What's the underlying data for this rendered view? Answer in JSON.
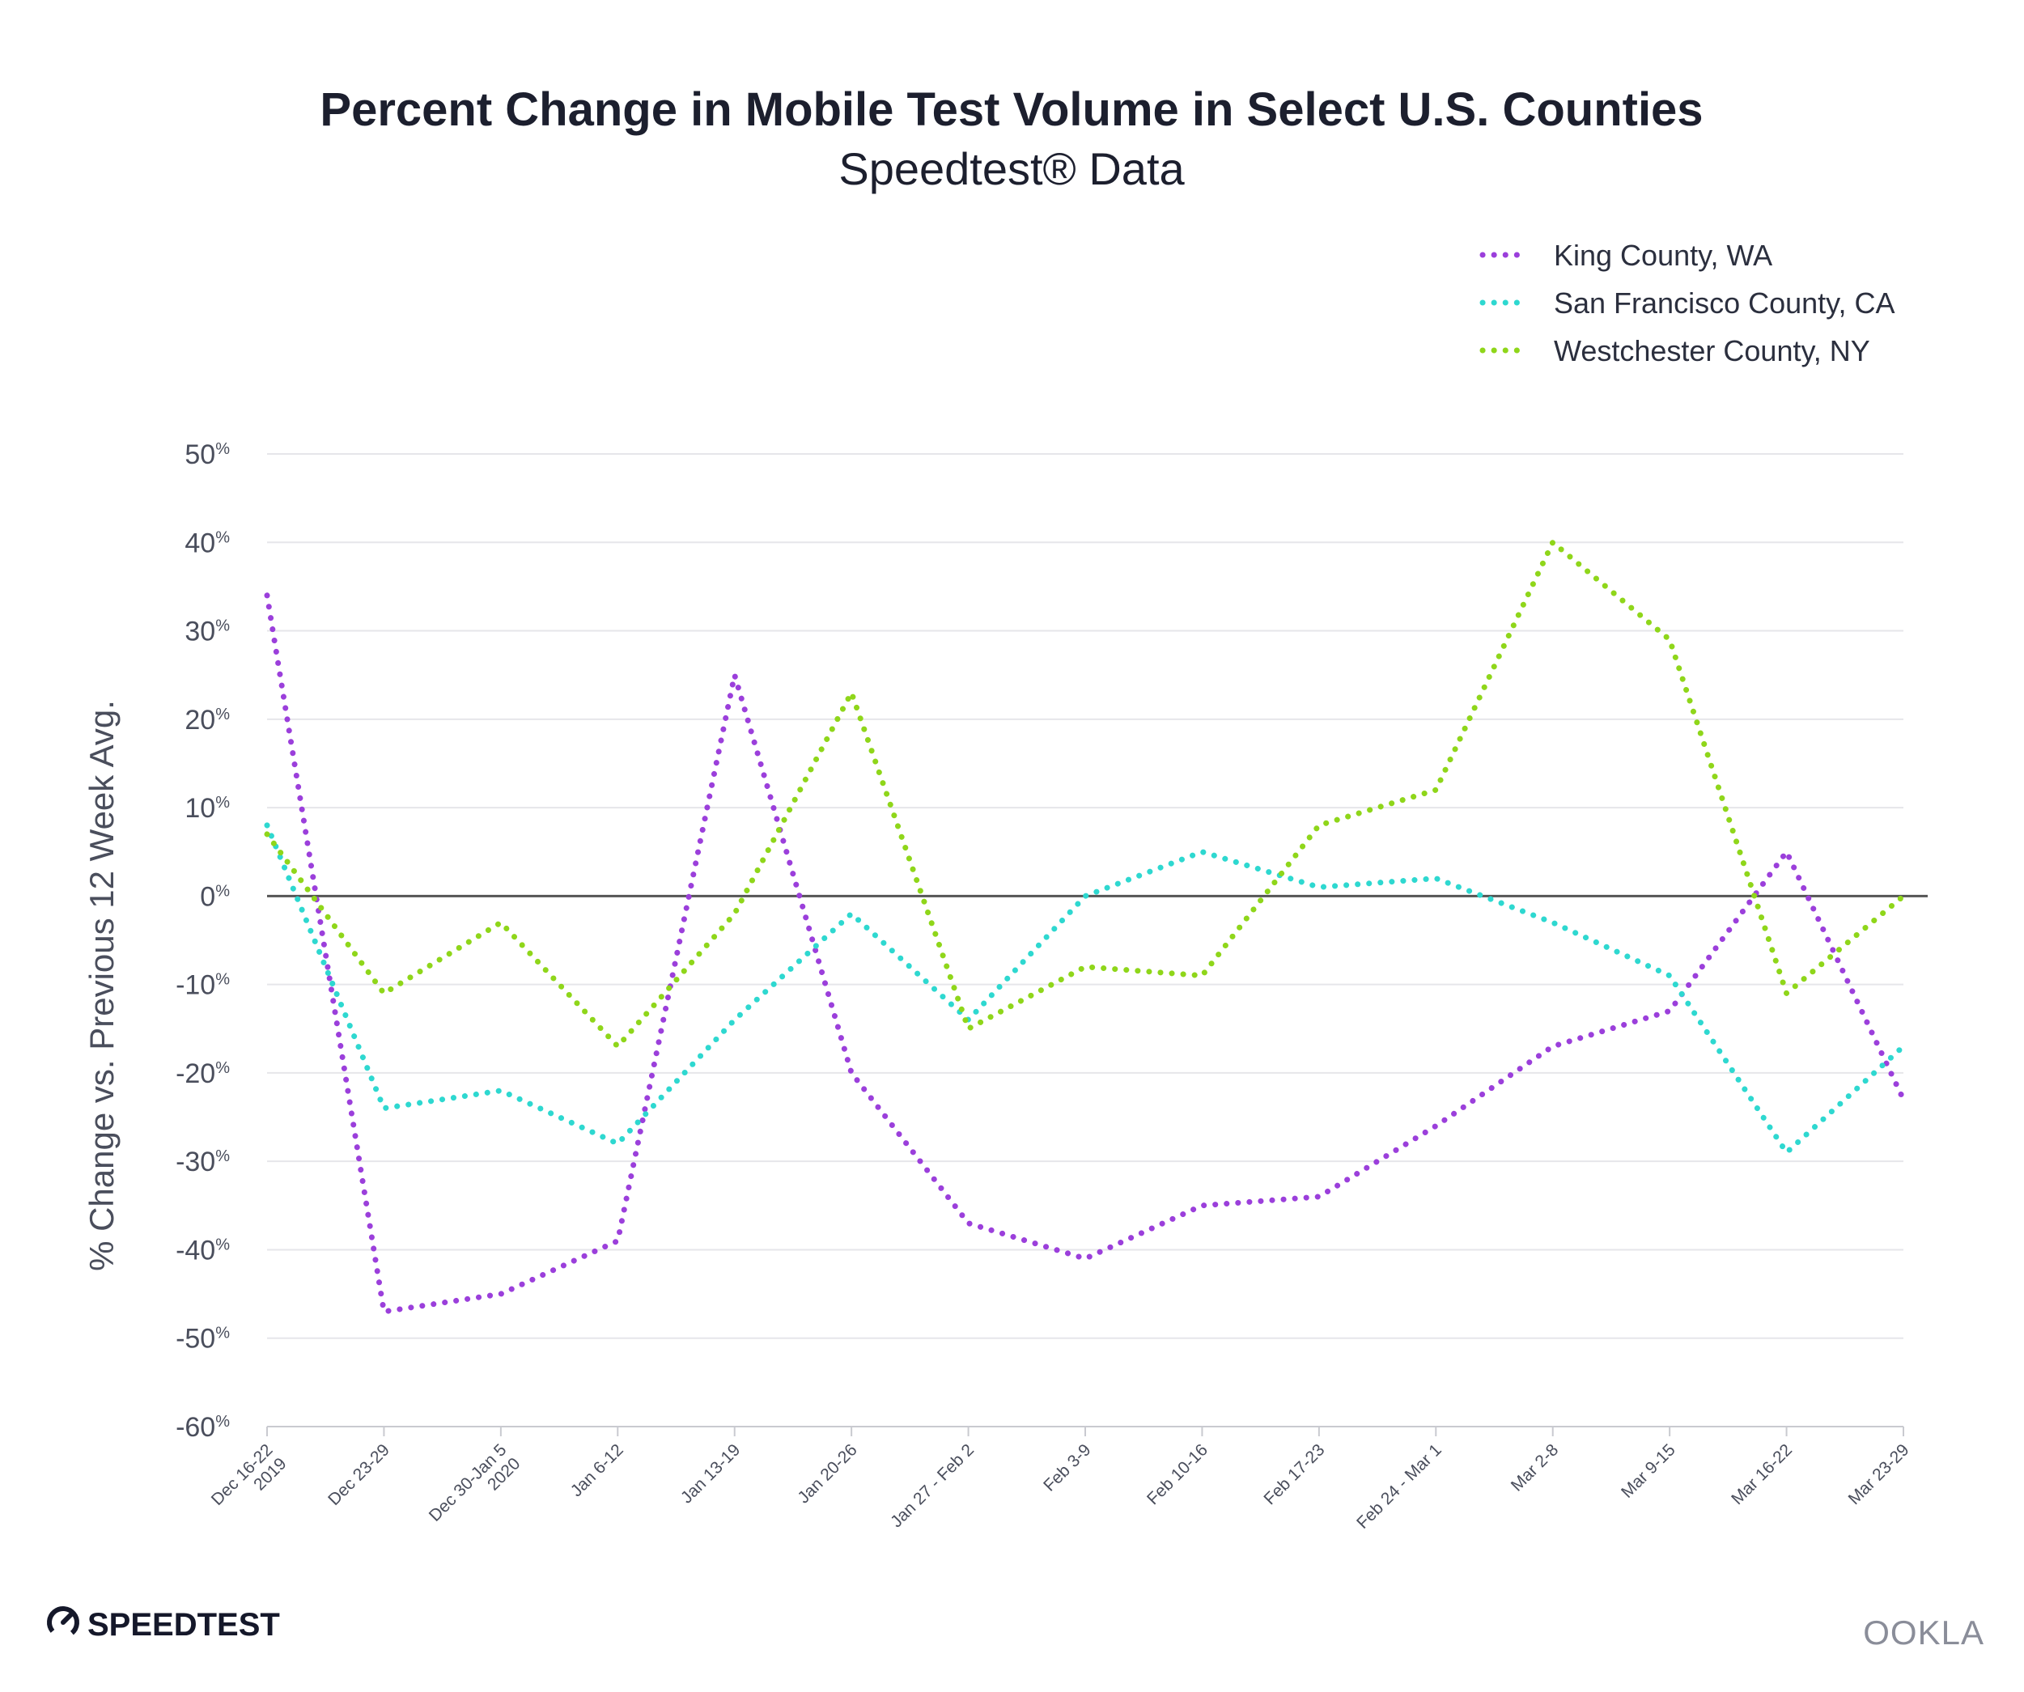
{
  "title": "Percent Change in Mobile Test Volume in Select U.S. Counties",
  "subtitle": "Speedtest® Data",
  "brand": {
    "left": "SPEEDTEST",
    "right": "OOKLA",
    "left_icon": "speedometer-icon"
  },
  "colors": {
    "king": "#9b3fdb",
    "sf": "#2ed8d0",
    "westchester": "#8fd61a",
    "grid": "#e6e6ea",
    "zero": "#555555"
  },
  "chart_data": {
    "type": "line",
    "title": "Percent Change in Mobile Test Volume in Select U.S. Counties",
    "subtitle": "Speedtest® Data",
    "ylabel": "% Change vs. Previous 12 Week Avg.",
    "xlabel": "",
    "ylim": [
      -60,
      50
    ],
    "yticks": [
      50,
      40,
      30,
      20,
      10,
      0,
      -10,
      -20,
      -30,
      -40,
      -50,
      -60
    ],
    "ytick_labels": [
      "50",
      "40",
      "30",
      "20",
      "10",
      "0",
      "-10",
      "-20",
      "-30",
      "-40",
      "-50",
      "-60"
    ],
    "ytick_suffix": "%",
    "categories": [
      [
        "Dec 16-22",
        "2019"
      ],
      [
        "Dec 23-29"
      ],
      [
        "Dec 30-Jan 5",
        "2020"
      ],
      [
        "Jan 6-12"
      ],
      [
        "Jan 13-19"
      ],
      [
        "Jan 20-26"
      ],
      [
        "Jan 27 - Feb 2"
      ],
      [
        "Feb 3-9"
      ],
      [
        "Feb 10-16"
      ],
      [
        "Feb 17-23"
      ],
      [
        "Feb 24 - Mar 1"
      ],
      [
        "Mar 2-8"
      ],
      [
        "Mar 9-15"
      ],
      [
        "Mar 16-22"
      ],
      [
        "Mar 23-29"
      ]
    ],
    "legend_position": "top-right",
    "grid": true,
    "series": [
      {
        "name": "King County, WA",
        "color": "#9b3fdb",
        "values": [
          34,
          -47,
          -45,
          -39,
          25,
          -20,
          -37,
          -41,
          -35,
          -34,
          -26,
          -17,
          -13,
          5,
          -23
        ]
      },
      {
        "name": "San Francisco County, CA",
        "color": "#2ed8d0",
        "values": [
          8,
          -24,
          -22,
          -28,
          -14,
          -2,
          -14,
          0,
          5,
          1,
          2,
          -3,
          -9,
          -29,
          -17
        ]
      },
      {
        "name": "Westchester County, NY",
        "color": "#8fd61a",
        "values": [
          7,
          -11,
          -3,
          -17,
          -2,
          23,
          -15,
          -8,
          -9,
          8,
          12,
          40,
          29,
          -11,
          0
        ]
      }
    ]
  }
}
